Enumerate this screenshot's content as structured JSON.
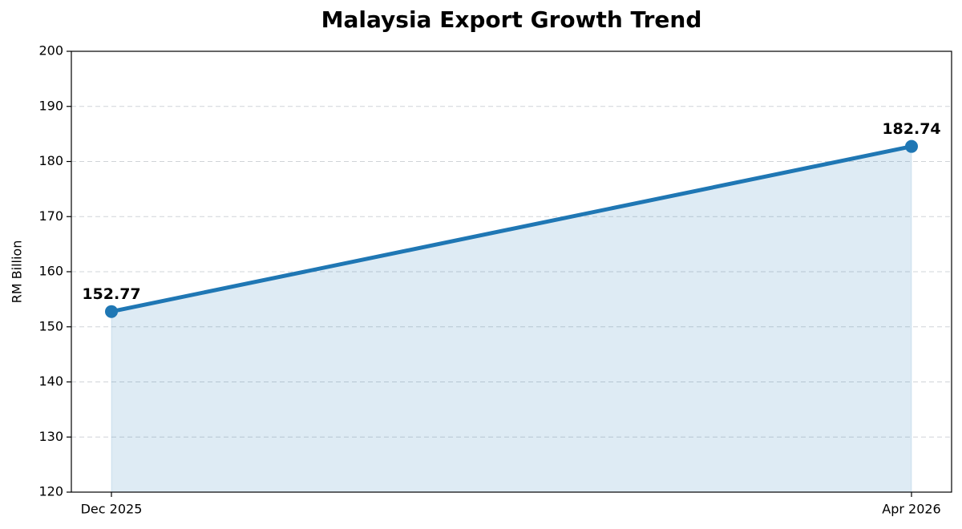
{
  "chart_data": {
    "type": "line",
    "title": "Malaysia Export Growth Trend",
    "ylabel": "RM Billion",
    "categories": [
      "Dec 2025",
      "Apr 2026"
    ],
    "values": [
      152.77,
      182.74
    ],
    "color": "#1f77b4",
    "ylim": [
      120,
      200
    ],
    "yticks": [
      120,
      130,
      140,
      150,
      160,
      170,
      180,
      190,
      200
    ],
    "grid": true,
    "fill": true
  }
}
